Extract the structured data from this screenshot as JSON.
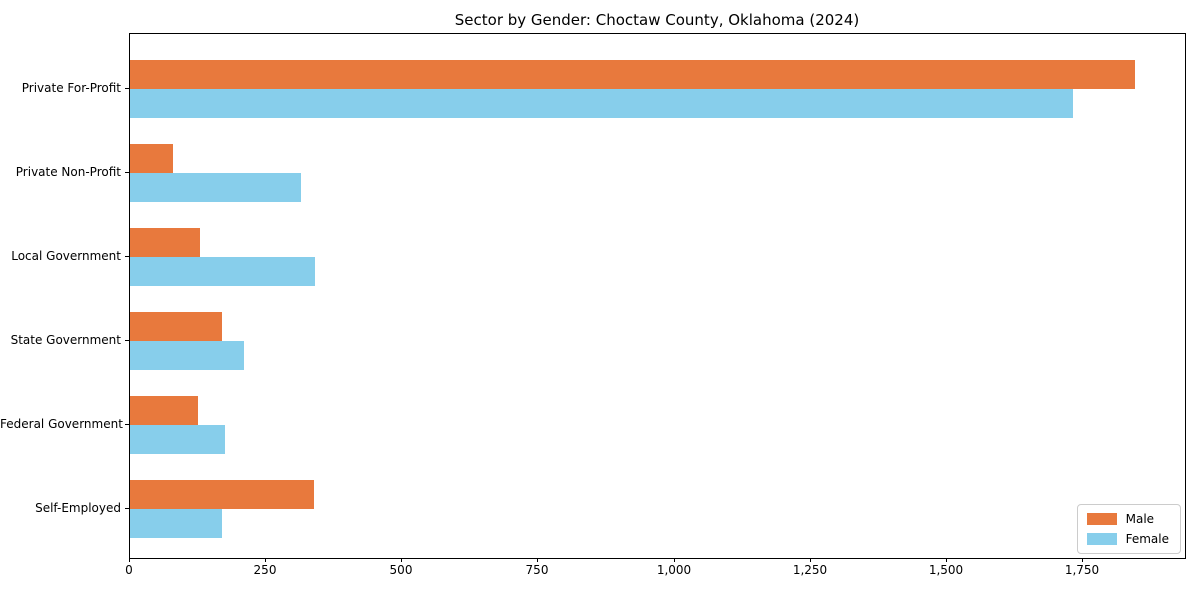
{
  "chart_data": {
    "type": "bar",
    "orientation": "horizontal",
    "title": "Sector by Gender: Choctaw County, Oklahoma (2024)",
    "categories": [
      "Private For-Profit",
      "Private Non-Profit",
      "Local Government",
      "State Government",
      "Federal Government",
      "Self-Employed"
    ],
    "series": [
      {
        "name": "Male",
        "color": "#E8793D",
        "values": [
          1846,
          79,
          128,
          169,
          125,
          338
        ]
      },
      {
        "name": "Female",
        "color": "#87CEEB",
        "values": [
          1731,
          314,
          339,
          209,
          174,
          169
        ]
      }
    ],
    "xlabel": "",
    "ylabel": "",
    "xlim": [
      0,
      1937
    ],
    "xticks": [
      0,
      250,
      500,
      750,
      1000,
      1250,
      1500,
      1750
    ],
    "xtick_labels": [
      "0",
      "250",
      "500",
      "750",
      "1,000",
      "1,250",
      "1,500",
      "1,750"
    ],
    "grid": false,
    "legend_position": "lower right"
  }
}
